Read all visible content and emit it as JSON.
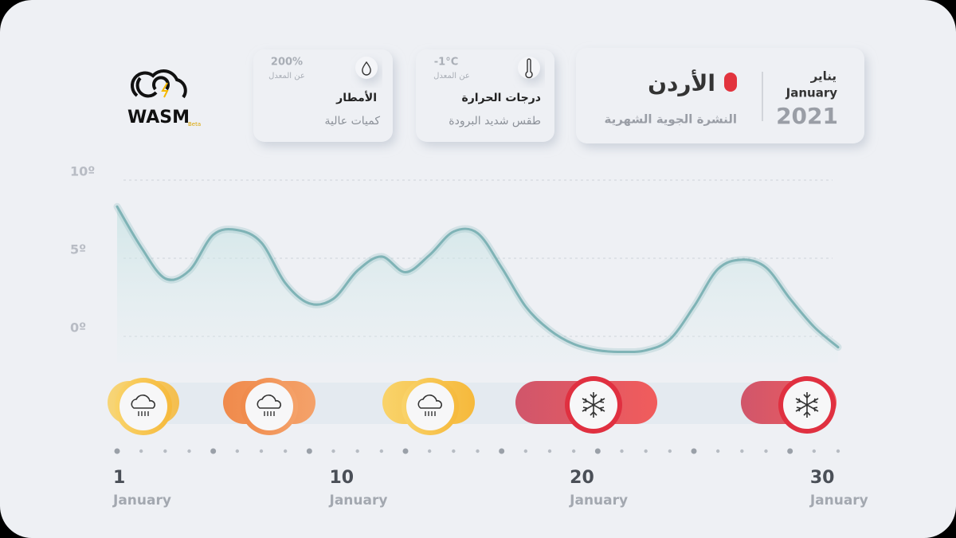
{
  "logo": {
    "name": "WASM",
    "badge": "Beta"
  },
  "cards": {
    "rain": {
      "value": "200%",
      "note": "عن المعدل",
      "title": "الأمطار",
      "subtitle": "كميات عالية"
    },
    "temperature": {
      "value": "-1°C",
      "note": "عن المعدل",
      "title": "درجات الحرارة",
      "subtitle": "طقس شديد البرودة"
    },
    "bulletin": {
      "month_ar": "يناير",
      "month_en": "January",
      "year": "2021",
      "country": "الأردن",
      "subtitle": "النشرة الجوية الشهرية"
    }
  },
  "chart_data": {
    "type": "line",
    "x": [
      1,
      2,
      3,
      4,
      5,
      6,
      7,
      8,
      9,
      10,
      11,
      12,
      13,
      14,
      15,
      16,
      17,
      18,
      19,
      20,
      21,
      22,
      23,
      24,
      25,
      26,
      27,
      28,
      29,
      30,
      31
    ],
    "series": [
      {
        "color": "#7fb3b6",
        "values": [
          8.0,
          5.4,
          3.4,
          3.9,
          6.2,
          6.5,
          5.7,
          3.1,
          1.8,
          2.1,
          3.9,
          4.8,
          3.8,
          4.9,
          6.4,
          6.3,
          4.1,
          1.6,
          0.1,
          -0.8,
          -1.2,
          -1.3,
          -1.2,
          -0.5,
          1.6,
          4.0,
          4.6,
          4.1,
          2.1,
          0.3,
          -1.0
        ]
      }
    ],
    "xlim": [
      1,
      31
    ],
    "ylim": [
      -2,
      11
    ],
    "yticks": [
      {
        "value": 10,
        "label": "10º"
      },
      {
        "value": 5,
        "label": "5º"
      },
      {
        "value": 0,
        "label": "0º"
      }
    ],
    "xticks": [
      1,
      10,
      20,
      30
    ],
    "x_tick_sublabel": "January",
    "grid": true
  }
}
